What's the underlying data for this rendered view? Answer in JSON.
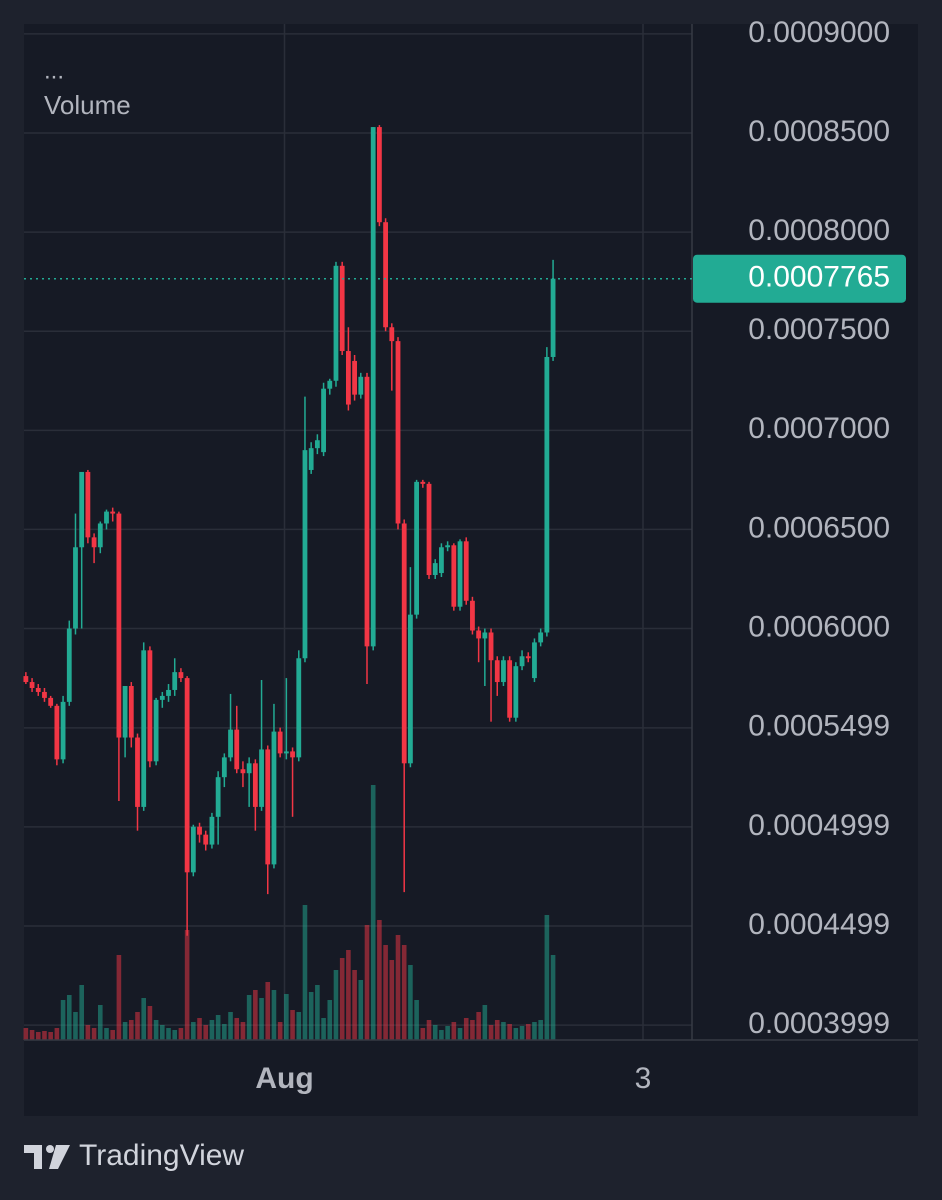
{
  "chart_data": {
    "type": "candlestick",
    "legend": [
      "...",
      "Volume"
    ],
    "up_color": "#22ab94",
    "down_color": "#f23645",
    "ylim": [
      0.0003924,
      0.000905
    ],
    "yticks": [
      {
        "value": 0.0009,
        "label": "0.0009000"
      },
      {
        "value": 0.00085,
        "label": "0.0008500"
      },
      {
        "value": 0.0008,
        "label": "0.0008000"
      },
      {
        "value": 0.00075,
        "label": "0.0007500"
      },
      {
        "value": 0.0007,
        "label": "0.0007000"
      },
      {
        "value": 0.00065,
        "label": "0.0006500"
      },
      {
        "value": 0.0006,
        "label": "0.0006000"
      },
      0.0005499,
      0.0004999,
      0.0004499,
      0.0003999
    ],
    "xlim": [
      -0.3,
      107.4
    ],
    "xticks": [
      {
        "value": 41.7,
        "label": "Aug"
      },
      {
        "value": 99.5,
        "label": "3"
      }
    ],
    "grid": true,
    "last_price": 0.0007765,
    "ohlc": [
      [
        0.000576,
        0.000578,
        0.000572,
        0.000573
      ],
      [
        0.000573,
        0.000575,
        0.000568,
        0.00057
      ],
      [
        0.00057,
        0.000572,
        0.000566,
        0.000568
      ],
      [
        0.000568,
        0.00057,
        0.000563,
        0.000565
      ],
      [
        0.000565,
        0.000566,
        0.00056,
        0.000561
      ],
      [
        0.000561,
        0.000562,
        0.000531,
        0.000534
      ],
      [
        0.000534,
        0.000566,
        0.000532,
        0.000563
      ],
      [
        0.000563,
        0.000604,
        0.000561,
        0.0006
      ],
      [
        0.0006,
        0.000658,
        0.000597,
        0.000641
      ],
      [
        0.000641,
        0.000679,
        0.0006,
        0.000679
      ],
      [
        0.000679,
        0.00068,
        0.000643,
        0.000646
      ],
      [
        0.000646,
        0.000648,
        0.000633,
        0.000641
      ],
      [
        0.000641,
        0.000654,
        0.000638,
        0.000653
      ],
      [
        0.000653,
        0.00066,
        0.00065,
        0.000659
      ],
      [
        0.000659,
        0.000661,
        0.000654,
        0.000658
      ],
      [
        0.000658,
        0.000659,
        0.000513,
        0.000545
      ],
      [
        0.000545,
        0.000571,
        0.000535,
        0.000571
      ],
      [
        0.000571,
        0.000573,
        0.00054,
        0.000545
      ],
      [
        0.000545,
        0.000547,
        0.000498,
        0.00051
      ],
      [
        0.00051,
        0.000593,
        0.000508,
        0.000589
      ],
      [
        0.000589,
        0.000591,
        0.00053,
        0.000533
      ],
      [
        0.000533,
        0.000565,
        0.000531,
        0.000564
      ],
      [
        0.000564,
        0.000568,
        0.00056,
        0.000566
      ],
      [
        0.000566,
        0.000572,
        0.000563,
        0.000569
      ],
      [
        0.000569,
        0.000585,
        0.000566,
        0.000578
      ],
      [
        0.000578,
        0.00058,
        0.000573,
        0.000575
      ],
      [
        0.000575,
        0.000576,
        0.000445,
        0.000477
      ],
      [
        0.000477,
        0.000501,
        0.000475,
        0.0005
      ],
      [
        0.0005,
        0.000502,
        0.000492,
        0.000496
      ],
      [
        0.000496,
        0.000498,
        0.000488,
        0.000491
      ],
      [
        0.000491,
        0.000507,
        0.000489,
        0.000505
      ],
      [
        0.000505,
        0.000528,
        0.000491,
        0.000525
      ],
      [
        0.000525,
        0.000537,
        0.00052,
        0.000535
      ],
      [
        0.000535,
        0.000567,
        0.000533,
        0.000549
      ],
      [
        0.000549,
        0.000561,
        0.000527,
        0.000529
      ],
      [
        0.000529,
        0.000533,
        0.00052,
        0.000527
      ],
      [
        0.000527,
        0.000535,
        0.00051,
        0.000532
      ],
      [
        0.000532,
        0.000534,
        0.000498,
        0.00051
      ],
      [
        0.00051,
        0.000574,
        0.000508,
        0.000539
      ],
      [
        0.000539,
        0.000541,
        0.000466,
        0.000481
      ],
      [
        0.000481,
        0.000562,
        0.000479,
        0.000548
      ],
      [
        0.000548,
        0.00055,
        0.000535,
        0.000537
      ],
      [
        0.000537,
        0.000575,
        0.000534,
        0.000538
      ],
      [
        0.000538,
        0.00054,
        0.000505,
        0.000535
      ],
      [
        0.000535,
        0.000589,
        0.000533,
        0.000585
      ],
      [
        0.000585,
        0.000717,
        0.000583,
        0.00069
      ],
      [
        0.00068,
        0.000694,
        0.000678,
        0.000691
      ],
      [
        0.000691,
        0.000698,
        0.000688,
        0.000695
      ],
      [
        0.000689,
        0.000724,
        0.000687,
        0.000721
      ],
      [
        0.000721,
        0.000726,
        0.000718,
        0.000725
      ],
      [
        0.000725,
        0.000785,
        0.000722,
        0.000783
      ],
      [
        0.000783,
        0.000785,
        0.000738,
        0.00074
      ],
      [
        0.00074,
        0.000752,
        0.00071,
        0.000713
      ],
      [
        0.000735,
        0.000738,
        0.000715,
        0.000718
      ],
      [
        0.000718,
        0.000729,
        0.000716,
        0.000727
      ],
      [
        0.000727,
        0.000729,
        0.000572,
        0.000591
      ],
      [
        0.000591,
        0.000853,
        0.000589,
        0.000853
      ],
      [
        0.000853,
        0.000854,
        0.000803,
        0.000805
      ],
      [
        0.000805,
        0.000807,
        0.00075,
        0.000752
      ],
      [
        0.000752,
        0.000754,
        0.00072,
        0.000745
      ],
      [
        0.000745,
        0.000747,
        0.00065,
        0.000653
      ],
      [
        0.000653,
        0.000655,
        0.000467,
        0.000532
      ],
      [
        0.000532,
        0.000631,
        0.00053,
        0.000607
      ],
      [
        0.000607,
        0.000675,
        0.000605,
        0.000674
      ],
      [
        0.000674,
        0.000675,
        0.000671,
        0.000673
      ],
      [
        0.000673,
        0.000674,
        0.000625,
        0.000627
      ],
      [
        0.000627,
        0.000635,
        0.000625,
        0.000633
      ],
      [
        0.000628,
        0.000643,
        0.000626,
        0.000641
      ],
      [
        0.000641,
        0.000644,
        0.000639,
        0.000642
      ],
      [
        0.000642,
        0.000643,
        0.000609,
        0.000611
      ],
      [
        0.000611,
        0.000645,
        0.000609,
        0.000644
      ],
      [
        0.000644,
        0.000646,
        0.000612,
        0.000614
      ],
      [
        0.000614,
        0.000616,
        0.000597,
        0.000599
      ],
      [
        0.000599,
        0.000601,
        0.000583,
        0.000595
      ],
      [
        0.000595,
        0.0006,
        0.000571,
        0.000598
      ],
      [
        0.000598,
        0.0006,
        0.000553,
        0.000584
      ],
      [
        0.000584,
        0.000586,
        0.000566,
        0.000573
      ],
      [
        0.000573,
        0.000586,
        0.000571,
        0.000584
      ],
      [
        0.000584,
        0.000586,
        0.000553,
        0.000555
      ],
      [
        0.000555,
        0.000583,
        0.000553,
        0.000581
      ],
      [
        0.000581,
        0.000589,
        0.000579,
        0.000586
      ],
      [
        0.000586,
        0.000588,
        0.000583,
        0.000585
      ],
      [
        0.000575,
        0.000595,
        0.000573,
        0.000593
      ],
      [
        0.000593,
        0.0006,
        0.000591,
        0.000598
      ],
      [
        0.000598,
        0.000742,
        0.000596,
        0.000737
      ],
      [
        0.000737,
        0.000786,
        0.000735,
        0.0007765
      ]
    ],
    "volume": [
      12,
      10,
      8,
      9,
      8,
      12,
      40,
      45,
      28,
      55,
      15,
      12,
      35,
      12,
      10,
      85,
      18,
      20,
      28,
      42,
      34,
      20,
      15,
      12,
      10,
      12,
      110,
      18,
      22,
      15,
      20,
      25,
      16,
      28,
      22,
      18,
      45,
      50,
      42,
      58,
      50,
      18,
      46,
      30,
      28,
      135,
      48,
      55,
      22,
      40,
      70,
      82,
      90,
      70,
      60,
      115,
      255,
      120,
      95,
      80,
      105,
      95,
      75,
      40,
      12,
      20,
      15,
      10,
      14,
      18,
      12,
      22,
      20,
      28,
      35,
      15,
      20,
      18,
      16,
      12,
      14,
      16,
      18,
      20,
      125,
      85
    ]
  },
  "footer": {
    "brand": "TradingView"
  }
}
